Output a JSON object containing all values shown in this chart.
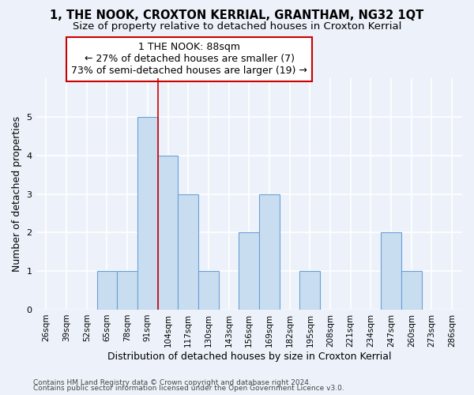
{
  "title": "1, THE NOOK, CROXTON KERRIAL, GRANTHAM, NG32 1QT",
  "subtitle": "Size of property relative to detached houses in Croxton Kerrial",
  "xlabel": "Distribution of detached houses by size in Croxton Kerrial",
  "ylabel": "Number of detached properties",
  "categories": [
    "26sqm",
    "39sqm",
    "52sqm",
    "65sqm",
    "78sqm",
    "91sqm",
    "104sqm",
    "117sqm",
    "130sqm",
    "143sqm",
    "156sqm",
    "169sqm",
    "182sqm",
    "195sqm",
    "208sqm",
    "221sqm",
    "234sqm",
    "247sqm",
    "260sqm",
    "273sqm",
    "286sqm"
  ],
  "values": [
    0,
    0,
    0,
    1,
    1,
    5,
    4,
    3,
    1,
    0,
    2,
    3,
    0,
    1,
    0,
    0,
    0,
    2,
    1,
    0,
    0
  ],
  "bar_color": "#c9ddf0",
  "bar_edge_color": "#6a9fd8",
  "red_line_index": 5,
  "red_line_color": "#cc0000",
  "annotation_line1": "1 THE NOOK: 88sqm",
  "annotation_line2": "← 27% of detached houses are smaller (7)",
  "annotation_line3": "73% of semi-detached houses are larger (19) →",
  "annotation_box_color": "#ffffff",
  "annotation_box_edge": "#cc0000",
  "ylim": [
    0,
    6
  ],
  "yticks": [
    0,
    1,
    2,
    3,
    4,
    5
  ],
  "footer1": "Contains HM Land Registry data © Crown copyright and database right 2024.",
  "footer2": "Contains public sector information licensed under the Open Government Licence v3.0.",
  "bg_color": "#edf2fa",
  "grid_color": "#ffffff",
  "title_fontsize": 10.5,
  "subtitle_fontsize": 9.5,
  "tick_fontsize": 7.5,
  "ylabel_fontsize": 9,
  "xlabel_fontsize": 9,
  "annotation_fontsize": 9,
  "footer_fontsize": 6.5
}
